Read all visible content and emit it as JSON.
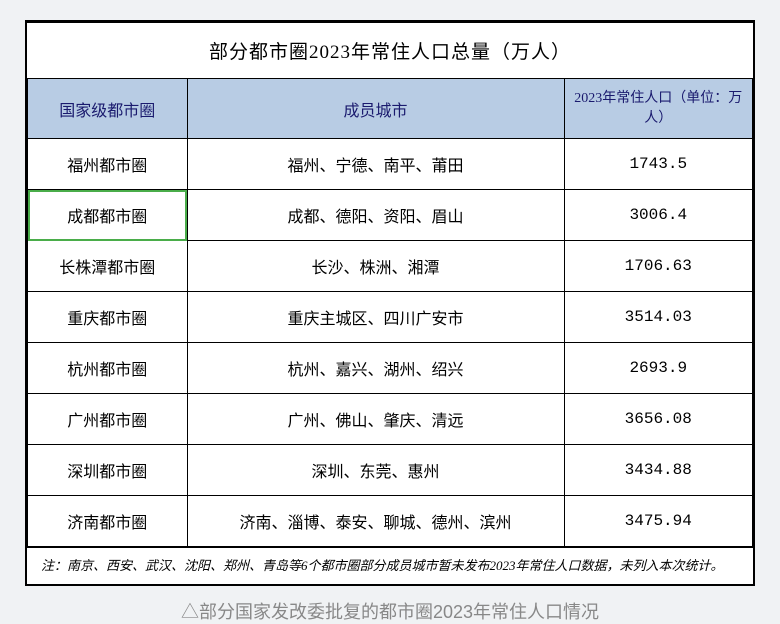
{
  "title": "部分都市圈2023年常住人口总量（万人）",
  "columns": [
    "国家级都市圈",
    "成员城市",
    "2023年常住人口（单位：万人）"
  ],
  "rows": [
    {
      "region": "福州都市圈",
      "cities": "福州、宁德、南平、莆田",
      "population": "1743.5",
      "highlight": false
    },
    {
      "region": "成都都市圈",
      "cities": "成都、德阳、资阳、眉山",
      "population": "3006.4",
      "highlight": true
    },
    {
      "region": "长株潭都市圈",
      "cities": "长沙、株洲、湘潭",
      "population": "1706.63",
      "highlight": false
    },
    {
      "region": "重庆都市圈",
      "cities": "重庆主城区、四川广安市",
      "population": "3514.03",
      "highlight": false
    },
    {
      "region": "杭州都市圈",
      "cities": "杭州、嘉兴、湖州、绍兴",
      "population": "2693.9",
      "highlight": false
    },
    {
      "region": "广州都市圈",
      "cities": "广州、佛山、肇庆、清远",
      "population": "3656.08",
      "highlight": false
    },
    {
      "region": "深圳都市圈",
      "cities": "深圳、东莞、惠州",
      "population": "3434.88",
      "highlight": false
    },
    {
      "region": "济南都市圈",
      "cities": "济南、淄博、泰安、聊城、德州、滨州",
      "population": "3475.94",
      "highlight": false
    }
  ],
  "note": "注：南京、西安、武汉、沈阳、郑州、青岛等6个都市圈部分成员城市暂未发布2023年常住人口数据，未列入本次统计。",
  "caption": "△部分国家发改委批复的都市圈2023年常住人口情况",
  "colors": {
    "header_bg": "#b8cce4",
    "header_text": "#1a1a6e",
    "page_bg": "#f0f2f4",
    "table_bg": "#ffffff",
    "border": "#000000",
    "caption_text": "#888888",
    "highlight_border": "#4aad4a"
  }
}
